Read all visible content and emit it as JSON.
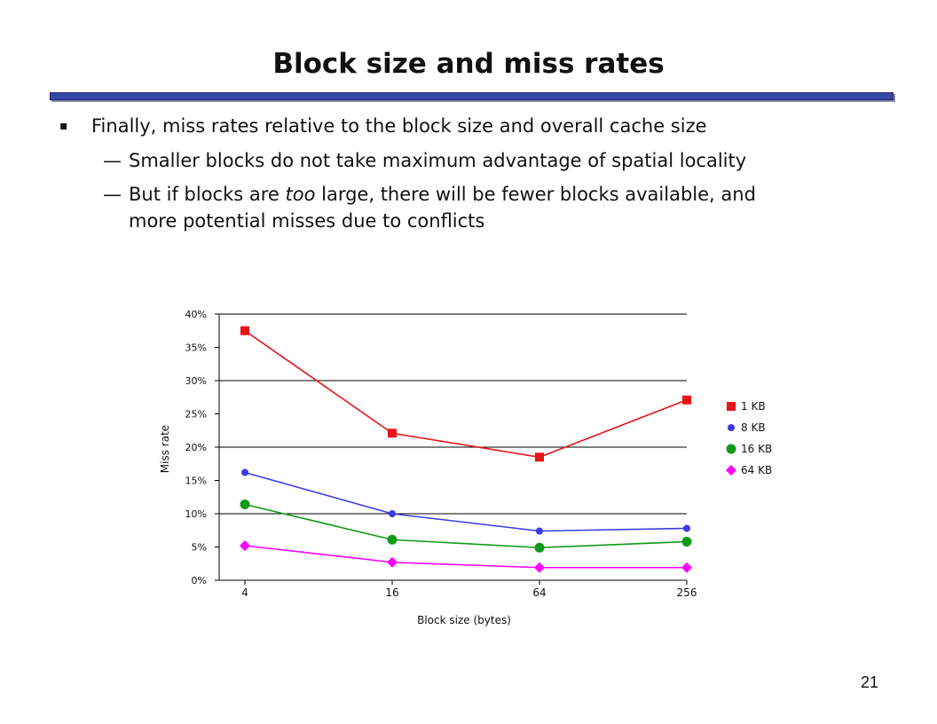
{
  "slide": {
    "title": "Block size and miss rates",
    "bullet": {
      "marker": "▪",
      "text": "Finally, miss rates relative to the block size and overall cache size"
    },
    "subbullets": [
      {
        "dash": "—",
        "text": "Smaller blocks do not take maximum advantage of spatial locality"
      },
      {
        "dash": "—",
        "line1_before": "But if blocks are ",
        "line1_emphasis": "too",
        "line1_after": " large, there will be fewer blocks available, and",
        "line2": "more potential misses due to conflicts"
      }
    ],
    "page_number": "21"
  },
  "chart_data": {
    "type": "line",
    "categories": [
      "4",
      "16",
      "64",
      "256"
    ],
    "xlabel": "Block size (bytes)",
    "ylabel": "Miss rate",
    "ylim": [
      0,
      40
    ],
    "yticks": [
      0,
      5,
      10,
      15,
      20,
      25,
      30,
      35,
      40
    ],
    "ytick_labels": [
      "0%",
      "5%",
      "10%",
      "15%",
      "20%",
      "25%",
      "30%",
      "35%",
      "40%"
    ],
    "gridlines": [
      10,
      20,
      30,
      40
    ],
    "legend_position": "right",
    "series": [
      {
        "name": "1 KB",
        "values": [
          37.5,
          22.1,
          18.5,
          27.1
        ],
        "color": "#e8141a",
        "marker": "square"
      },
      {
        "name": "8 KB",
        "values": [
          16.2,
          10.0,
          7.4,
          7.8
        ],
        "color": "#3a3ae6",
        "marker": "circle"
      },
      {
        "name": "16 KB",
        "values": [
          11.4,
          6.1,
          4.9,
          5.8
        ],
        "color": "#109a16",
        "marker": "large-circle"
      },
      {
        "name": "64 KB",
        "values": [
          5.2,
          2.7,
          1.9,
          1.9
        ],
        "color": "#ff00ff",
        "marker": "diamond"
      }
    ]
  }
}
